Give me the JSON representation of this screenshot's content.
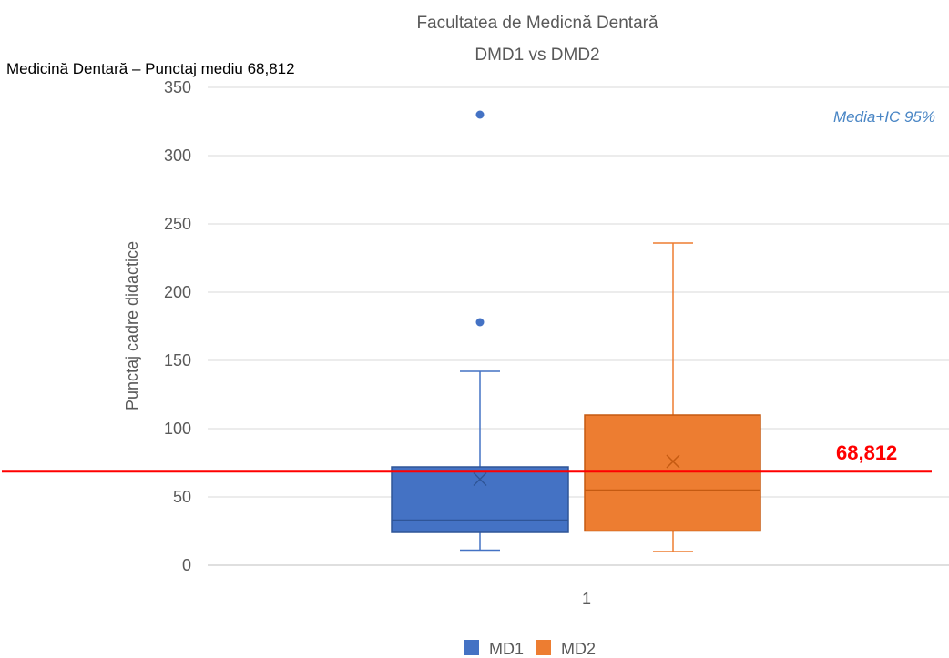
{
  "chart_data": {
    "type": "box",
    "title": "Facultatea de Medicnă Dentară",
    "subtitle": "DMD1 vs DMD2",
    "top_caption": "Medicină Dentară – Punctaj mediu 68,812",
    "ylabel": "Punctaj cadre didactice",
    "xlabel": "",
    "categories": [
      "1"
    ],
    "ylim": [
      0,
      350
    ],
    "yticks": [
      0,
      50,
      100,
      150,
      200,
      250,
      300,
      350
    ],
    "grid": true,
    "legend_position": "bottom",
    "annotation": "Media+IC 95%",
    "reference_line": {
      "value": 68.812,
      "label": "68,812",
      "color": "#ff0000"
    },
    "series": [
      {
        "name": "MD1",
        "color": "#4472c4",
        "whisker_low": 11,
        "q1": 24,
        "median": 33,
        "q3": 72,
        "whisker_high": 142,
        "mean": 63,
        "outliers": [
          178,
          330
        ]
      },
      {
        "name": "MD2",
        "color": "#ed7d31",
        "whisker_low": 10,
        "q1": 25,
        "median": 55,
        "q3": 110,
        "whisker_high": 236,
        "mean": 76,
        "outliers": []
      }
    ]
  }
}
